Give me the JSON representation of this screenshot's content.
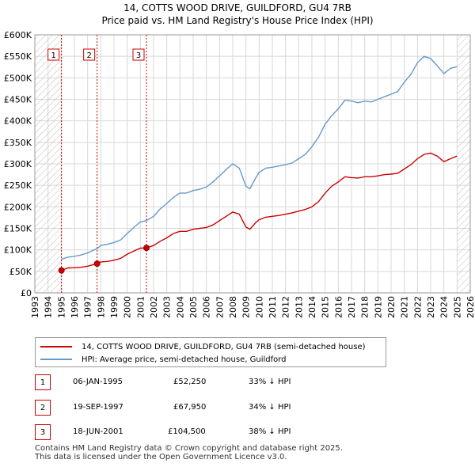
{
  "title_line1": "14, COTTS WOOD DRIVE, GUILDFORD, GU4 7RB",
  "title_line2": "Price paid vs. HM Land Registry's House Price Index (HPI)",
  "colors": {
    "price": "#cc0000",
    "hpi": "#6699cc",
    "grid": "#d8d8d8",
    "hatch": "#bbbbbb",
    "marker_line": "#cc0000"
  },
  "legend": {
    "price_label": "14, COTTS WOOD DRIVE, GUILDFORD, GU4 7RB (semi-detached house)",
    "hpi_label": "HPI: Average price, semi-detached house, Guildford"
  },
  "transactions": [
    {
      "num": "1",
      "date": "06-JAN-1995",
      "price": "£52,250",
      "hpi": "33% ↓ HPI"
    },
    {
      "num": "2",
      "date": "19-SEP-1997",
      "price": "£67,950",
      "hpi": "34% ↓ HPI"
    },
    {
      "num": "3",
      "date": "18-JUN-2001",
      "price": "£104,500",
      "hpi": "38% ↓ HPI"
    }
  ],
  "footer_line1": "Contains HM Land Registry data © Crown copyright and database right 2025.",
  "footer_line2": "This data is licensed under the Open Government Licence v3.0.",
  "chart_data": {
    "type": "line",
    "title": "14, COTTS WOOD DRIVE, GUILDFORD, GU4 7RB — Price paid vs. HM Land Registry's House Price Index (HPI)",
    "xlabel": "",
    "ylabel": "",
    "xlim": [
      1993,
      2026
    ],
    "ylim": [
      0,
      600000
    ],
    "x_ticks": [
      1993,
      1994,
      1995,
      1996,
      1997,
      1998,
      1999,
      2000,
      2001,
      2002,
      2003,
      2004,
      2005,
      2006,
      2007,
      2008,
      2009,
      2010,
      2011,
      2012,
      2013,
      2014,
      2015,
      2016,
      2017,
      2018,
      2019,
      2020,
      2021,
      2022,
      2023,
      2024,
      2025,
      2026
    ],
    "y_ticks": [
      0,
      50000,
      100000,
      150000,
      200000,
      250000,
      300000,
      350000,
      400000,
      450000,
      500000,
      550000,
      600000
    ],
    "y_tick_labels": [
      "£0",
      "£50K",
      "£100K",
      "£150K",
      "£200K",
      "£250K",
      "£300K",
      "£350K",
      "£400K",
      "£450K",
      "£500K",
      "£550K",
      "£600K"
    ],
    "grid": true,
    "hatched_ranges": [
      [
        1993,
        1995.02
      ],
      [
        2025.0,
        2026
      ]
    ],
    "sales": [
      {
        "label": "1",
        "x": 1995.02,
        "y": 52250
      },
      {
        "label": "2",
        "x": 1997.72,
        "y": 67950
      },
      {
        "label": "3",
        "x": 2001.46,
        "y": 104500
      }
    ],
    "series": [
      {
        "name": "14, COTTS WOOD DRIVE, GUILDFORD, GU4 7RB (semi-detached house)",
        "x": [
          1995.02,
          1995.5,
          1996,
          1996.5,
          1997,
          1997.72,
          1998,
          1998.5,
          1999,
          1999.5,
          2000,
          2000.5,
          2001,
          2001.46,
          2002,
          2002.5,
          2003,
          2003.5,
          2004,
          2004.5,
          2005,
          2005.5,
          2006,
          2006.5,
          2007,
          2007.5,
          2008,
          2008.5,
          2009,
          2009.3,
          2009.7,
          2010,
          2010.5,
          2011,
          2011.5,
          2012,
          2012.5,
          2013,
          2013.5,
          2014,
          2014.5,
          2015,
          2015.5,
          2016,
          2016.5,
          2017,
          2017.5,
          2018,
          2018.5,
          2019,
          2019.5,
          2020,
          2020.5,
          2021,
          2021.5,
          2022,
          2022.5,
          2023,
          2023.5,
          2024,
          2024.5,
          2025
        ],
        "values": [
          52250,
          58000,
          58500,
          59500,
          62000,
          67950,
          72000,
          73000,
          76000,
          80000,
          90000,
          97000,
          104000,
          104500,
          110000,
          120000,
          128000,
          138000,
          143000,
          143000,
          148000,
          150000,
          152000,
          158000,
          168000,
          178000,
          188000,
          183000,
          153000,
          148000,
          162000,
          170000,
          176000,
          178000,
          180000,
          183000,
          186000,
          190000,
          194000,
          200000,
          212000,
          232000,
          248000,
          258000,
          270000,
          268000,
          267000,
          270000,
          270000,
          272000,
          275000,
          276000,
          278000,
          288000,
          298000,
          312000,
          322000,
          325000,
          318000,
          305000,
          312000,
          318000
        ]
      },
      {
        "name": "HPI: Average price, semi-detached house, Guildford",
        "x": [
          1995.02,
          1995.5,
          1996,
          1996.5,
          1997,
          1997.72,
          1998,
          1998.5,
          1999,
          1999.5,
          2000,
          2000.5,
          2001,
          2001.46,
          2002,
          2002.5,
          2003,
          2003.5,
          2004,
          2004.5,
          2005,
          2005.5,
          2006,
          2006.5,
          2007,
          2007.5,
          2008,
          2008.5,
          2009,
          2009.3,
          2009.7,
          2010,
          2010.5,
          2011,
          2011.5,
          2012,
          2012.5,
          2013,
          2013.5,
          2014,
          2014.5,
          2015,
          2015.5,
          2016,
          2016.5,
          2017,
          2017.5,
          2018,
          2018.5,
          2019,
          2019.5,
          2020,
          2020.5,
          2021,
          2021.5,
          2022,
          2022.5,
          2023,
          2023.5,
          2024,
          2024.5,
          2025
        ],
        "values": [
          78000,
          83000,
          85000,
          88000,
          93000,
          103000,
          110000,
          113000,
          117000,
          123000,
          138000,
          152000,
          165000,
          168000,
          178000,
          195000,
          208000,
          222000,
          232000,
          232000,
          238000,
          241000,
          246000,
          258000,
          272000,
          287000,
          300000,
          290000,
          248000,
          242000,
          265000,
          280000,
          290000,
          292000,
          295000,
          298000,
          302000,
          312000,
          322000,
          340000,
          362000,
          392000,
          412000,
          428000,
          448000,
          446000,
          442000,
          446000,
          444000,
          450000,
          456000,
          462000,
          468000,
          490000,
          508000,
          535000,
          550000,
          545000,
          528000,
          510000,
          522000,
          526000
        ]
      }
    ]
  }
}
